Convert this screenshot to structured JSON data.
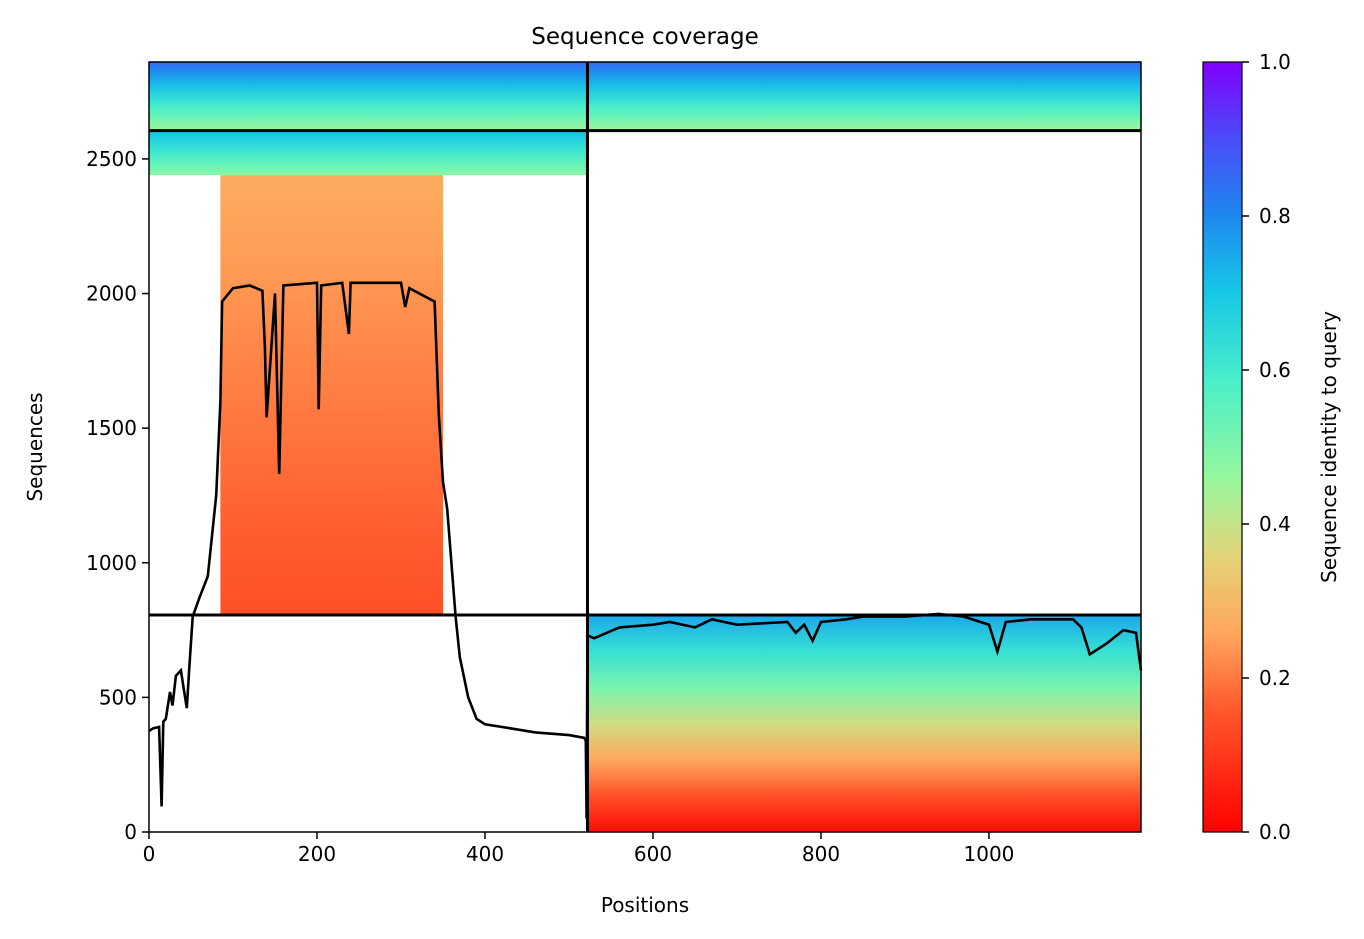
{
  "chart_data": {
    "type": "heatmap",
    "title": "Sequence coverage",
    "xlabel": "Positions",
    "ylabel": "Sequences",
    "colorbar_label": "Sequence identity to query",
    "xlim": [
      0,
      1181
    ],
    "ylim": [
      0,
      2860
    ],
    "xticks": [
      0,
      200,
      400,
      600,
      800,
      1000
    ],
    "yticks": [
      0,
      500,
      1000,
      1500,
      2000,
      2500
    ],
    "colorbar_ticks": [
      0.0,
      0.2,
      0.4,
      0.6,
      0.8,
      1.0
    ],
    "colorbar_tick_labels": [
      "0.0",
      "0.2",
      "0.4",
      "0.6",
      "0.8",
      "1.0"
    ],
    "colormap": "rainbow_r",
    "chain_boundary_x": 522,
    "block_boundaries_y": [
      806,
      2605
    ],
    "blocks": [
      {
        "x": [
          0,
          522
        ],
        "y": [
          2605,
          2860
        ],
        "identity_bottom": 0.45,
        "identity_top": 0.85
      },
      {
        "x": [
          522,
          1181
        ],
        "y": [
          2605,
          2860
        ],
        "identity_bottom": 0.45,
        "identity_top": 0.85
      },
      {
        "x": [
          0,
          522
        ],
        "y": [
          2440,
          2605
        ],
        "identity_bottom": 0.48,
        "identity_top": 0.72
      },
      {
        "x": [
          85,
          350
        ],
        "y": [
          806,
          2440
        ],
        "identity_bottom": 0.14,
        "identity_top": 0.27
      },
      {
        "x": [
          522,
          1181
        ],
        "y": [
          0,
          806
        ],
        "identity_bottom": 0.02,
        "identity_top": 0.75
      }
    ],
    "series": [
      {
        "x": [
          0,
          5,
          12,
          15,
          17,
          20,
          25,
          28,
          32,
          38,
          45,
          48,
          52,
          60,
          70,
          80,
          85,
          87,
          100,
          120,
          135,
          138,
          140,
          150,
          155,
          160,
          200,
          202,
          205,
          230,
          238,
          240,
          300,
          305,
          310,
          340,
          345,
          350,
          355,
          360,
          365,
          370,
          380,
          390,
          400,
          430,
          460,
          500,
          518,
          520,
          521,
          522,
          530,
          560,
          600,
          620,
          650,
          670,
          700,
          760,
          770,
          780,
          790,
          800,
          830,
          850,
          900,
          940,
          970,
          1000,
          1010,
          1020,
          1050,
          1100,
          1110,
          1120,
          1140,
          1160,
          1175,
          1181
        ],
        "y": [
          375,
          385,
          390,
          95,
          410,
          420,
          520,
          470,
          580,
          600,
          460,
          610,
          800,
          870,
          950,
          1250,
          1600,
          1970,
          2020,
          2030,
          2010,
          1800,
          1540,
          2000,
          1330,
          2030,
          2040,
          1570,
          2030,
          2040,
          1850,
          2040,
          2040,
          1950,
          2020,
          1970,
          1550,
          1300,
          1200,
          1000,
          800,
          650,
          500,
          420,
          400,
          385,
          370,
          360,
          350,
          340,
          50,
          730,
          720,
          760,
          770,
          780,
          760,
          790,
          770,
          780,
          740,
          770,
          710,
          780,
          790,
          800,
          800,
          810,
          800,
          770,
          670,
          780,
          790,
          790,
          760,
          660,
          700,
          750,
          740,
          600
        ]
      }
    ]
  }
}
